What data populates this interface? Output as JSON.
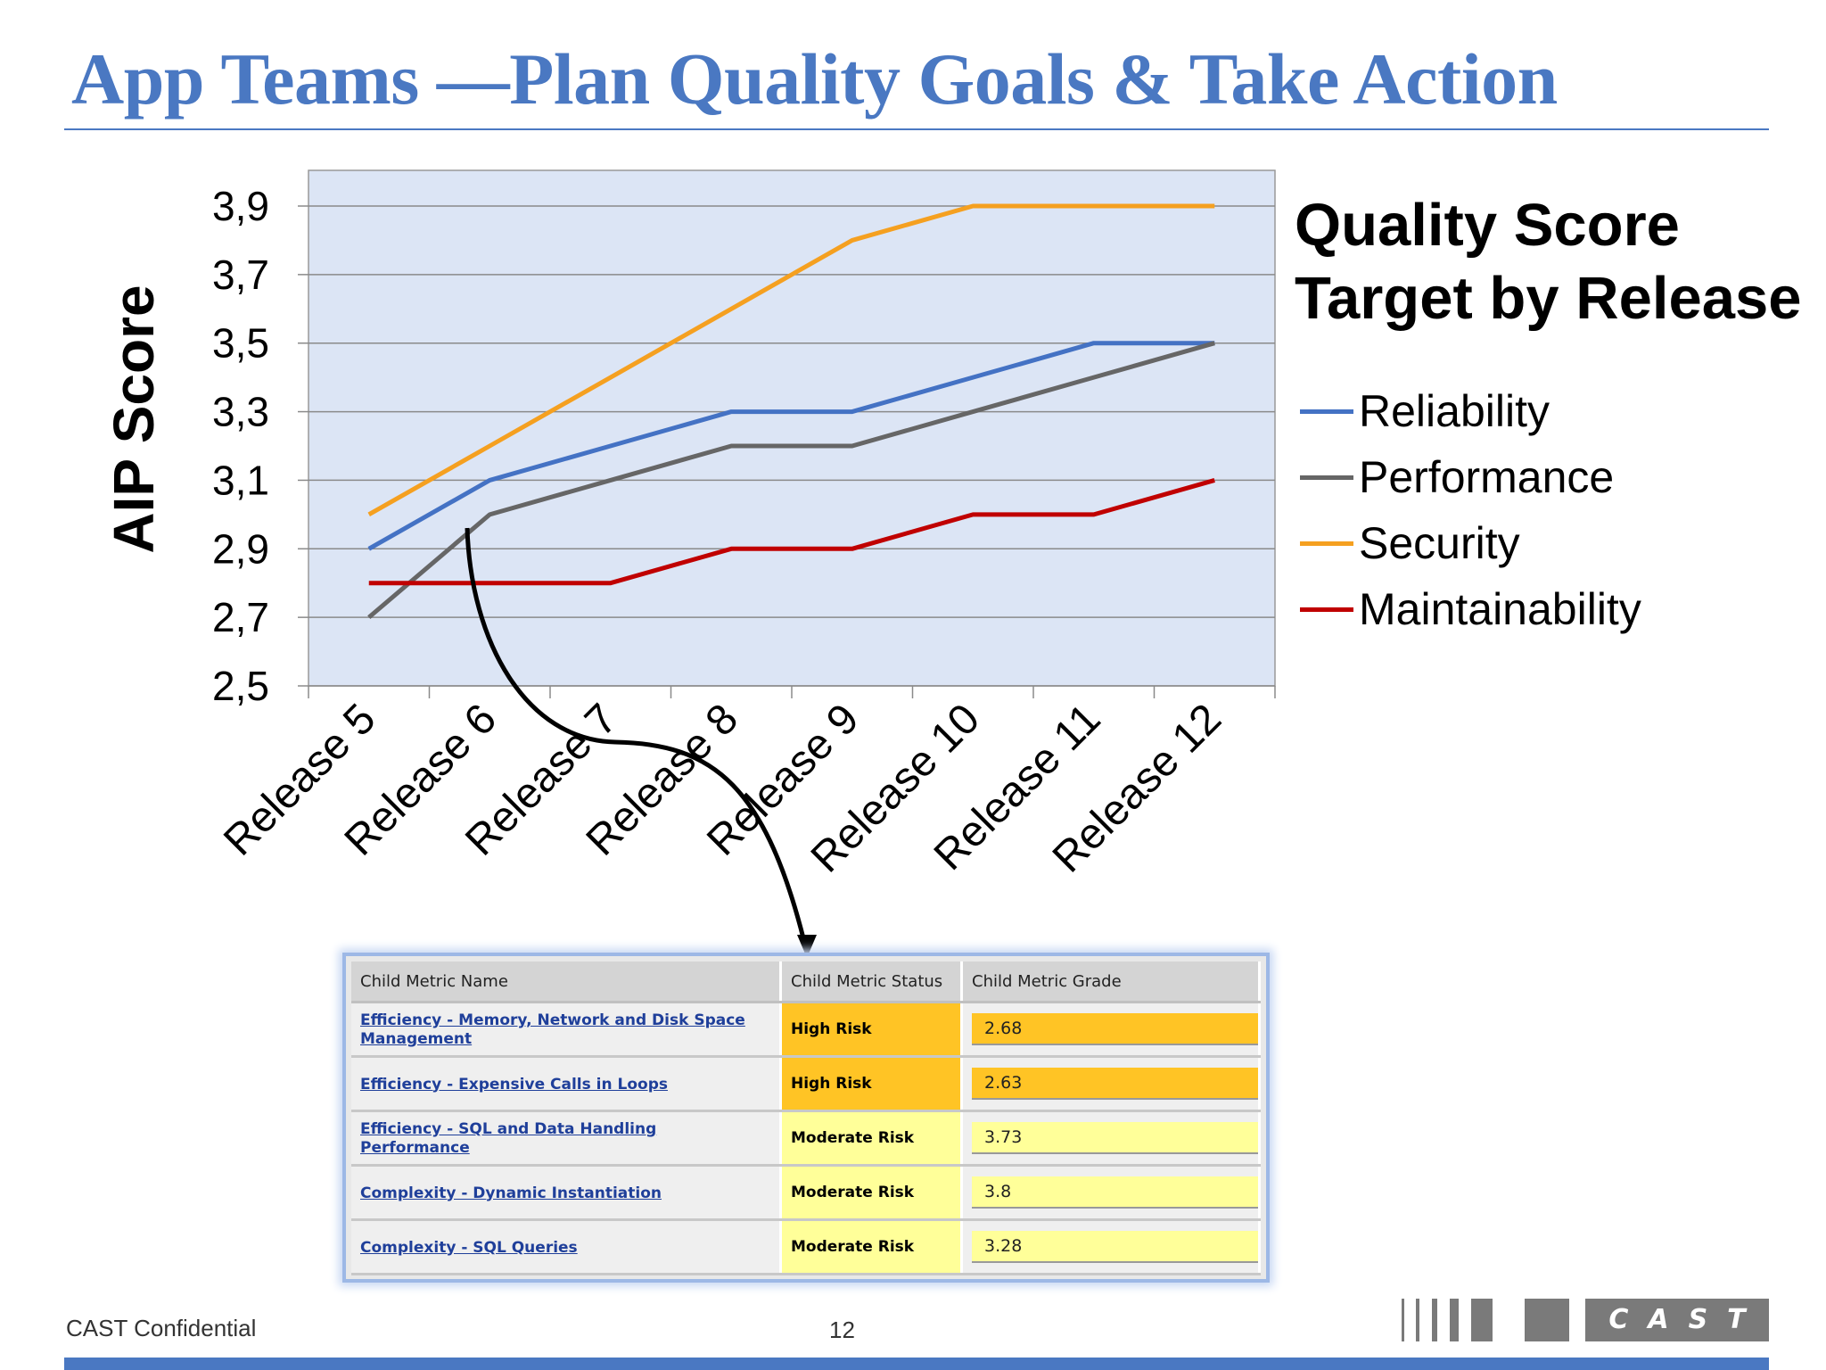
{
  "title": "App Teams —Plan Quality Goals & Take Action",
  "chart_data": {
    "type": "line",
    "ylabel": "AIP Score",
    "ylim": [
      2.5,
      3.9
    ],
    "yticks": [
      "2,5",
      "2,7",
      "2,9",
      "3,1",
      "3,3",
      "3,5",
      "3,7",
      "3,9"
    ],
    "ytick_values": [
      2.5,
      2.7,
      2.9,
      3.1,
      3.3,
      3.5,
      3.7,
      3.9
    ],
    "categories": [
      "Release 5",
      "Release 6",
      "Release 7",
      "Release 8",
      "Release 9",
      "Release 10",
      "Release 11",
      "Release 12"
    ],
    "grid": true,
    "legend_title": "Quality Score Target by Release",
    "legend_position": "right",
    "series": [
      {
        "name": "Reliability",
        "color": "#4472c4",
        "values": [
          2.9,
          3.1,
          3.2,
          3.3,
          3.3,
          3.4,
          3.5,
          3.5
        ]
      },
      {
        "name": "Performance",
        "color": "#666666",
        "values": [
          2.7,
          3.0,
          3.1,
          3.2,
          3.2,
          3.3,
          3.4,
          3.5
        ]
      },
      {
        "name": "Security",
        "color": "#f5a020",
        "values": [
          3.0,
          3.2,
          3.4,
          3.6,
          3.8,
          3.9,
          3.9,
          3.9
        ]
      },
      {
        "name": "Maintainability",
        "color": "#c00000",
        "values": [
          2.8,
          2.8,
          2.8,
          2.9,
          2.9,
          3.0,
          3.0,
          3.1
        ]
      }
    ]
  },
  "metrics_table": {
    "headers": [
      "Child Metric Name",
      "Child Metric Status",
      "Child Metric Grade"
    ],
    "rows": [
      {
        "name": "Efficiency - Memory, Network and Disk Space Management",
        "status": "High Risk",
        "grade": "2.68",
        "color": "#ffc425"
      },
      {
        "name": "Efficiency - Expensive Calls in Loops",
        "status": "High Risk",
        "grade": "2.63",
        "color": "#ffc425"
      },
      {
        "name": "Efficiency - SQL and Data Handling Performance",
        "status": "Moderate Risk",
        "grade": "3.73",
        "color": "#ffff99"
      },
      {
        "name": "Complexity - Dynamic Instantiation",
        "status": "Moderate Risk",
        "grade": "3.8",
        "color": "#ffff99"
      },
      {
        "name": "Complexity - SQL Queries",
        "status": "Moderate Risk",
        "grade": "3.28",
        "color": "#ffff99"
      }
    ]
  },
  "footer": {
    "confidential": "CAST Confidential",
    "page_number": "12",
    "logo_text": "CAST"
  }
}
